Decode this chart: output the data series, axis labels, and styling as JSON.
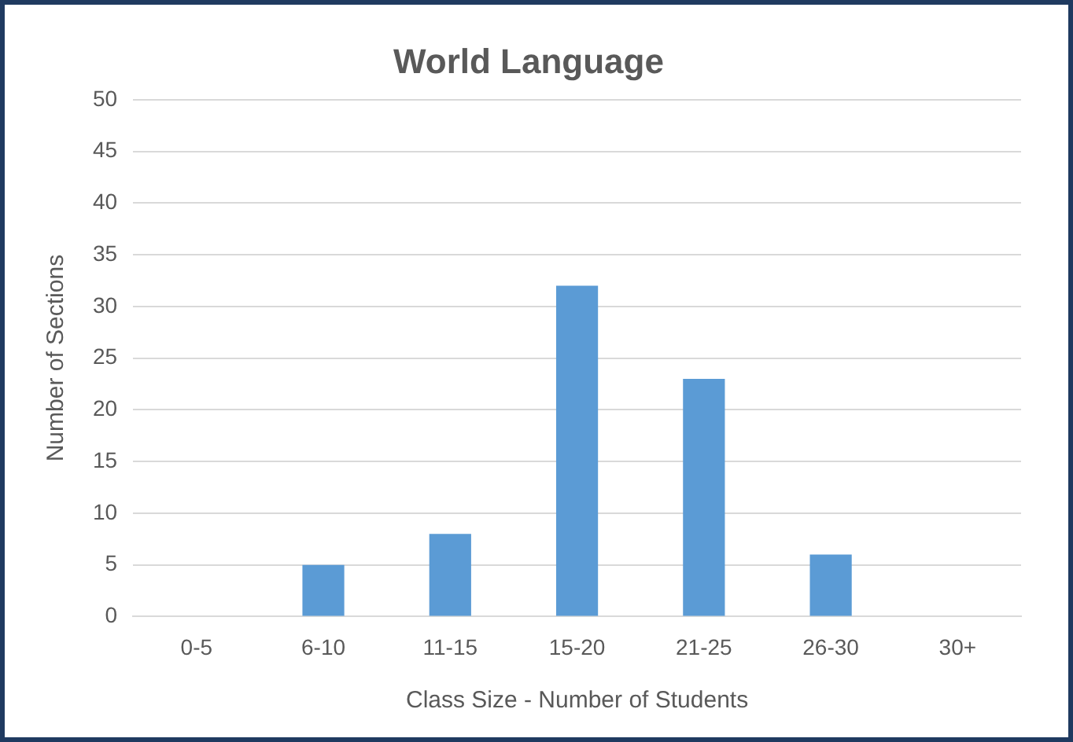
{
  "chart_data": {
    "type": "bar",
    "title": "World Language",
    "xlabel": "Class Size - Number of Students",
    "ylabel": "Number of Sections",
    "categories": [
      "0-5",
      "6-10",
      "11-15",
      "15-20",
      "21-25",
      "26-30",
      "30+"
    ],
    "values": [
      0,
      5,
      8,
      32,
      23,
      6,
      0
    ],
    "color": "#5b9bd5",
    "ylim": [
      0,
      50
    ],
    "yticks": [
      0,
      5,
      10,
      15,
      20,
      25,
      30,
      35,
      40,
      45,
      50
    ],
    "grid": "y"
  }
}
